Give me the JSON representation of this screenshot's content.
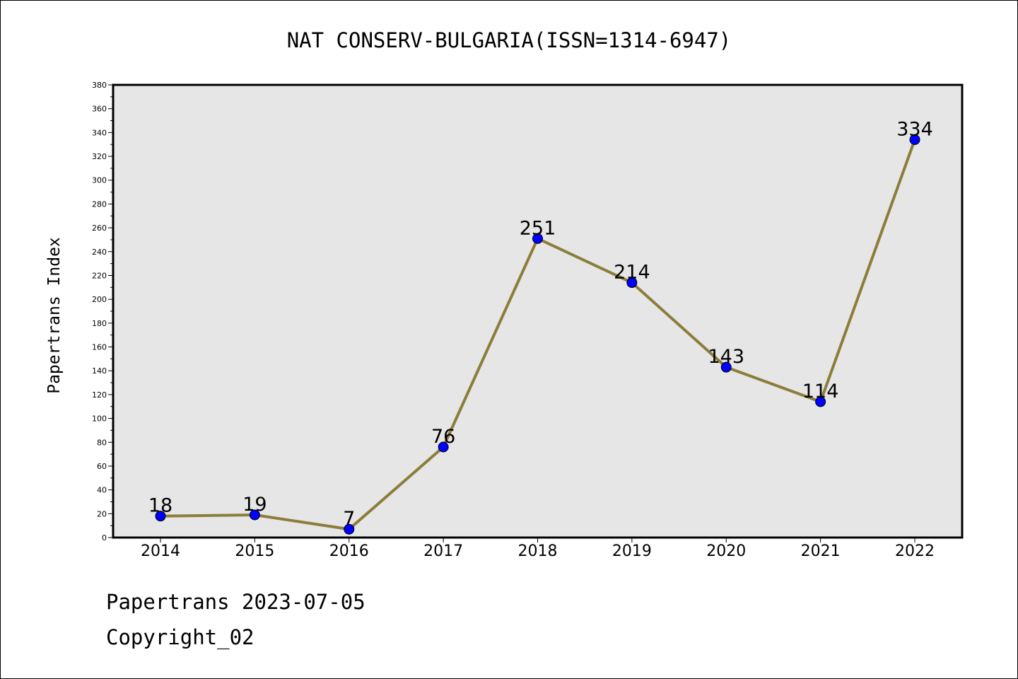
{
  "chart_data": {
    "type": "line",
    "title": "NAT CONSERV-BULGARIA(ISSN=1314-6947)",
    "xlabel": "",
    "ylabel": "Papertrans Index",
    "categories": [
      "2014",
      "2015",
      "2016",
      "2017",
      "2018",
      "2019",
      "2020",
      "2021",
      "2022"
    ],
    "series": [
      {
        "values": [
          18,
          19,
          7,
          76,
          251,
          214,
          143,
          114,
          334
        ]
      }
    ],
    "ylim": [
      0,
      380
    ],
    "yticks": [
      0,
      20,
      40,
      60,
      80,
      100,
      120,
      140,
      160,
      180,
      200,
      220,
      240,
      260,
      280,
      300,
      320,
      340,
      360,
      380
    ],
    "data_labels": true,
    "grid": false,
    "line_color": "#8b7d3a",
    "marker_color": "#0000ff",
    "plot_background": "#e6e6e6"
  },
  "footer": {
    "line1": "Papertrans 2023-07-05",
    "line2": "Copyright_02"
  }
}
